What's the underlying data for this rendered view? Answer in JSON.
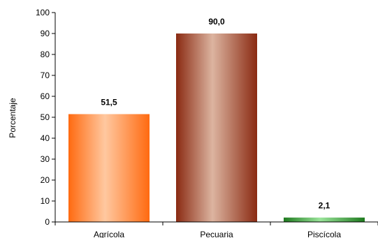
{
  "chart_data": {
    "type": "bar",
    "categories": [
      "Agrícola",
      "Pecuaria",
      "Piscícola"
    ],
    "values": [
      51.5,
      90.0,
      2.1
    ],
    "data_labels": [
      "51,5",
      "90,0",
      "2,1"
    ],
    "ylabel": "Porcentaje",
    "xlabel": "",
    "ylim": [
      0,
      100
    ],
    "yticks": [
      0,
      10,
      20,
      30,
      40,
      50,
      60,
      70,
      80,
      90,
      100
    ],
    "grid": false,
    "legend": "none",
    "colors": {
      "bars": [
        {
          "edge": "#ff6a10",
          "mid": "#ffc8a0"
        },
        {
          "edge": "#8a2a12",
          "mid": "#dcb4a0"
        },
        {
          "edge": "#1e7a1e",
          "mid": "#9ae49a"
        }
      ],
      "axis": "#000000"
    }
  }
}
